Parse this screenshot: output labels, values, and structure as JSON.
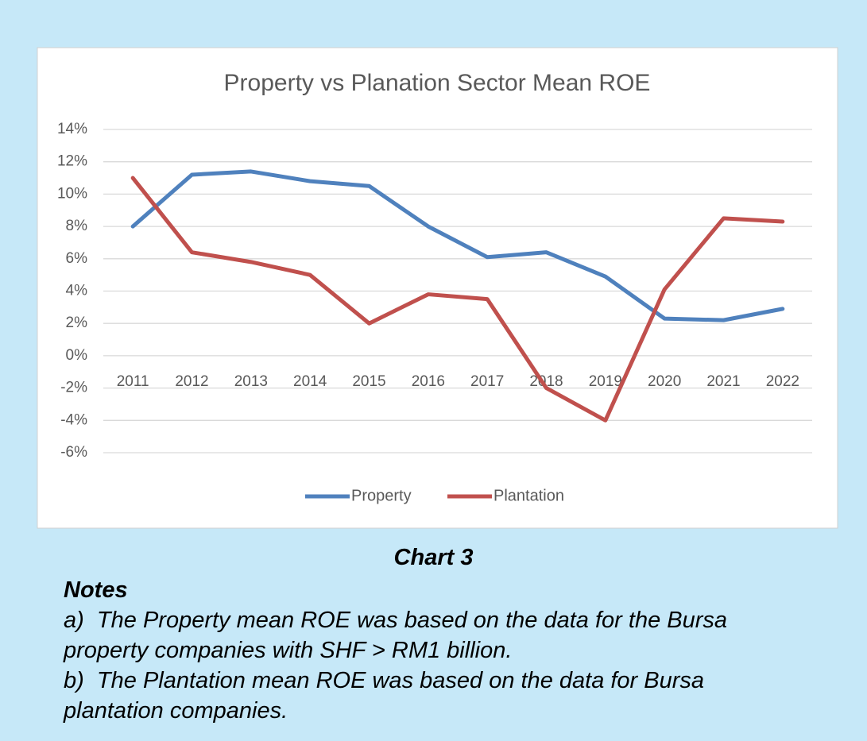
{
  "chart_data": {
    "type": "line",
    "title": "Property vs Planation Sector Mean ROE",
    "categories": [
      "2011",
      "2012",
      "2013",
      "2014",
      "2015",
      "2016",
      "2017",
      "2018",
      "2019",
      "2020",
      "2021",
      "2022"
    ],
    "series": [
      {
        "name": "Property",
        "color": "#4f81bd",
        "values": [
          8.0,
          11.2,
          11.4,
          10.8,
          10.5,
          8.0,
          6.1,
          6.4,
          4.9,
          2.3,
          2.2,
          2.9
        ]
      },
      {
        "name": "Plantation",
        "color": "#c0504d",
        "values": [
          11.0,
          6.4,
          5.8,
          5.0,
          2.0,
          3.8,
          3.5,
          -2.0,
          -4.0,
          4.1,
          8.5,
          8.3
        ]
      }
    ],
    "ylim": [
      -6,
      14
    ],
    "yticks": [
      {
        "value": -6,
        "label": "-6%"
      },
      {
        "value": -4,
        "label": "-4%"
      },
      {
        "value": -2,
        "label": "-2%"
      },
      {
        "value": 0,
        "label": "0%"
      },
      {
        "value": 2,
        "label": "2%"
      },
      {
        "value": 4,
        "label": "4%"
      },
      {
        "value": 6,
        "label": "6%"
      },
      {
        "value": 8,
        "label": "8%"
      },
      {
        "value": 10,
        "label": "10%"
      },
      {
        "value": 12,
        "label": "12%"
      },
      {
        "value": 14,
        "label": "14%"
      }
    ],
    "grid": true,
    "legend": "bottom"
  },
  "caption": "Chart 3",
  "notes": {
    "title": "Notes",
    "items": [
      {
        "label": "a)",
        "text": "The Property mean ROE was based on the data for the Bursa property companies with SHF > RM1 billion."
      },
      {
        "label": "b)",
        "text": "The Plantation mean ROE was based on the data for Bursa plantation companies."
      }
    ]
  }
}
